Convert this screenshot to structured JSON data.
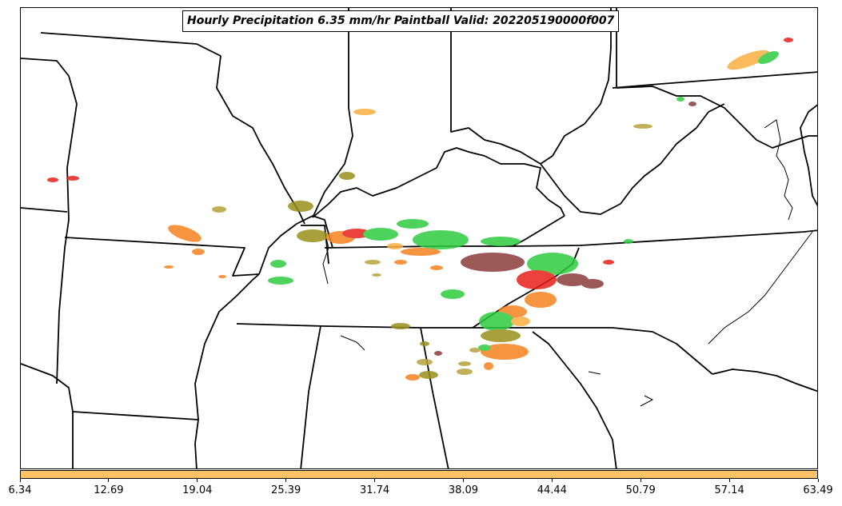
{
  "title": "Hourly Precipitation 6.35 mm/hr Paintball Valid: 202205190000f007",
  "colorbar": {
    "color": "#ffc266",
    "ticks": [
      "6.34",
      "12.69",
      "19.04",
      "25.39",
      "31.74",
      "38.09",
      "44.44",
      "50.79",
      "57.14",
      "63.49"
    ]
  },
  "colors": {
    "red": "#e8201c",
    "orange": "#f5821f",
    "light_orange": "#fbb040",
    "green": "#2ecc40",
    "olive": "#9a8f1c",
    "brown": "#8b3a3a",
    "yellow_olive": "#b5a33a"
  }
}
